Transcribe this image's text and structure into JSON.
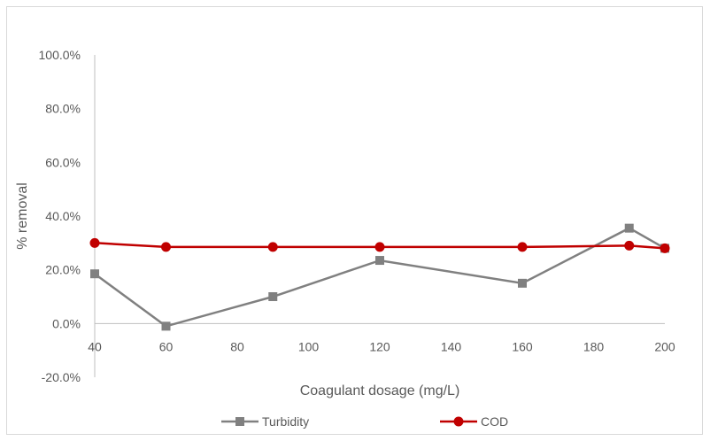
{
  "chart_data": {
    "type": "line",
    "x": [
      40,
      60,
      90,
      120,
      160,
      190,
      200
    ],
    "series": [
      {
        "name": "Turbidity",
        "color": "#808080",
        "marker": "square",
        "values": [
          0.185,
          -0.01,
          0.1,
          0.235,
          0.15,
          0.355,
          0.28
        ]
      },
      {
        "name": "COD",
        "color": "#c00000",
        "marker": "circle",
        "values": [
          0.3,
          0.285,
          0.285,
          0.285,
          0.285,
          0.29,
          0.28
        ]
      }
    ],
    "xlabel": "Coagulant dosage (mg/L)",
    "ylabel": "% removal",
    "xlim": [
      40,
      200
    ],
    "ylim": [
      -0.2,
      1.0
    ],
    "x_ticks": [
      "40",
      "60",
      "80",
      "100",
      "120",
      "140",
      "160",
      "180",
      "200"
    ],
    "y_ticks": [
      "-20.0%",
      "0.0%",
      "20.0%",
      "40.0%",
      "60.0%",
      "80.0%",
      "100.0%"
    ],
    "grid": false,
    "legend_position": "bottom"
  }
}
